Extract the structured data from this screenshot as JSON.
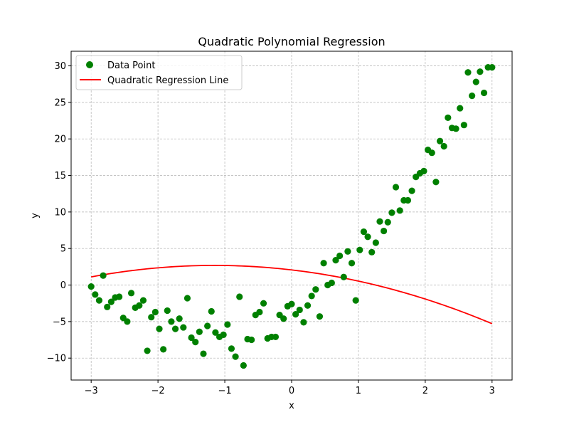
{
  "chart_data": {
    "type": "scatter",
    "title": "Quadratic Polynomial Regression",
    "xlabel": "x",
    "ylabel": "y",
    "xlim": [
      -3.3,
      3.3
    ],
    "ylim": [
      -13,
      32
    ],
    "xticks": [
      -3,
      -2,
      -1,
      0,
      1,
      2,
      3
    ],
    "xtick_labels": [
      "−3",
      "−2",
      "−1",
      "0",
      "1",
      "2",
      "3"
    ],
    "yticks": [
      -10,
      -5,
      0,
      5,
      10,
      15,
      20,
      25,
      30
    ],
    "ytick_labels": [
      "−10",
      "−5",
      "0",
      "5",
      "10",
      "15",
      "20",
      "25",
      "30"
    ],
    "grid": true,
    "legend_position": "top-left",
    "series": [
      {
        "name": "Data Point",
        "kind": "scatter",
        "color": "#008000",
        "x": [
          -3.0,
          -2.94,
          -2.88,
          -2.82,
          -2.76,
          -2.7,
          -2.64,
          -2.58,
          -2.52,
          -2.46,
          -2.4,
          -2.34,
          -2.28,
          -2.22,
          -2.16,
          -2.1,
          -2.04,
          -1.98,
          -1.92,
          -1.86,
          -1.8,
          -1.74,
          -1.68,
          -1.62,
          -1.56,
          -1.5,
          -1.44,
          -1.38,
          -1.32,
          -1.26,
          -1.2,
          -1.14,
          -1.08,
          -1.02,
          -0.96,
          -0.9,
          -0.84,
          -0.78,
          -0.72,
          -0.66,
          -0.6,
          -0.54,
          -0.48,
          -0.42,
          -0.36,
          -0.3,
          -0.24,
          -0.18,
          -0.12,
          -0.06,
          0.0,
          0.06,
          0.12,
          0.18,
          0.24,
          0.3,
          0.36,
          0.42,
          0.48,
          0.54,
          0.6,
          0.66,
          0.72,
          0.78,
          0.84,
          0.9,
          0.96,
          1.02,
          1.08,
          1.14,
          1.2,
          1.26,
          1.32,
          1.38,
          1.44,
          1.5,
          1.56,
          1.62,
          1.68,
          1.74,
          1.8,
          1.86,
          1.92,
          1.98,
          2.04,
          2.1,
          2.16,
          2.22,
          2.28,
          2.34,
          2.4,
          2.46,
          2.52,
          2.58,
          2.64,
          2.7,
          2.76,
          2.82,
          2.88,
          2.94,
          3.0
        ],
        "y": [
          -0.2,
          -1.3,
          -2.1,
          1.3,
          -3.0,
          -2.3,
          -1.7,
          -1.6,
          -4.5,
          -5.0,
          -1.1,
          -3.1,
          -2.8,
          -2.1,
          -9.0,
          -4.4,
          -3.7,
          -6.0,
          -8.8,
          -3.5,
          -5.0,
          -6.0,
          -4.6,
          -5.8,
          -1.8,
          -7.2,
          -7.8,
          -6.4,
          -9.4,
          -5.6,
          -3.6,
          -6.5,
          -7.1,
          -6.8,
          -5.4,
          -8.7,
          -9.8,
          -1.6,
          -11.0,
          -7.4,
          -7.5,
          -4.1,
          -3.7,
          -2.5,
          -7.3,
          -7.1,
          -7.1,
          -4.1,
          -4.6,
          -2.9,
          -2.6,
          -4.0,
          -3.4,
          -5.1,
          -2.8,
          -1.5,
          -0.6,
          -4.3,
          3.0,
          0.0,
          0.3,
          3.4,
          4.0,
          1.1,
          4.6,
          3.0,
          -2.1,
          4.8,
          7.3,
          6.6,
          4.5,
          5.8,
          8.7,
          7.4,
          8.6,
          9.9,
          13.4,
          10.2,
          11.6,
          11.6,
          12.9,
          14.8,
          15.3,
          15.6,
          18.5,
          18.1,
          14.1,
          19.7,
          19.0,
          22.9,
          21.5,
          21.4,
          24.2,
          21.9,
          29.1,
          25.9,
          27.8,
          29.2,
          26.3,
          29.8,
          29.8
        ]
      },
      {
        "name": "Quadratic Regression Line",
        "kind": "line",
        "color": "#ff0000",
        "coefficients": {
          "a": -0.462,
          "b": -1.067,
          "c": 2.07
        },
        "x_range": [
          -3,
          3
        ]
      }
    ]
  }
}
